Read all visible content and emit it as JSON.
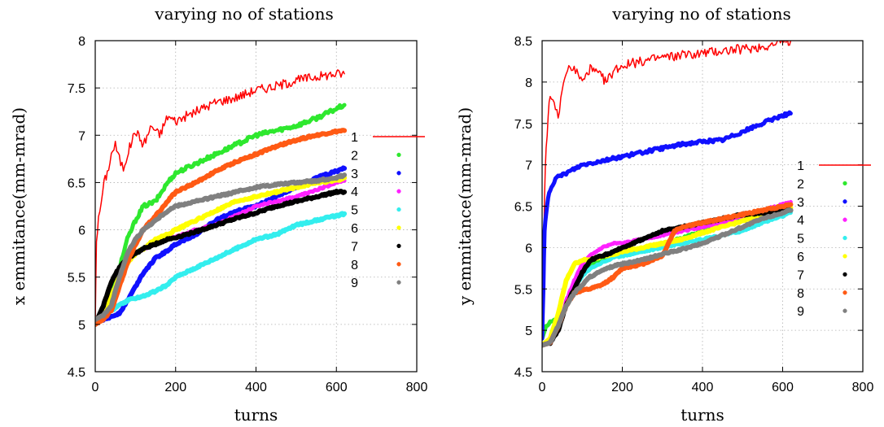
{
  "chart_data": [
    {
      "type": "line",
      "title": "varying no of stations",
      "xlabel": "turns",
      "ylabel": "x emmitance(mm-mrad)",
      "xlim": [
        0,
        800
      ],
      "ylim": [
        4.5,
        8
      ],
      "xticks": [
        0,
        200,
        400,
        600,
        800
      ],
      "yticks": [
        4.5,
        5,
        5.5,
        6,
        6.5,
        7,
        7.5,
        8
      ],
      "grid": true,
      "legend_position": "right-outside",
      "series": [
        {
          "name": "1",
          "color": "#ff0000",
          "width": 1.5,
          "jitter": 0.05,
          "x": [
            0,
            3,
            8,
            15,
            22,
            30,
            40,
            50,
            60,
            70,
            80,
            100,
            120,
            140,
            160,
            180,
            200,
            250,
            300,
            350,
            400,
            450,
            500,
            550,
            600,
            620
          ],
          "y": [
            5.0,
            5.9,
            6.1,
            6.3,
            6.5,
            6.6,
            6.8,
            6.9,
            6.75,
            6.65,
            6.8,
            7.05,
            6.9,
            7.1,
            7.0,
            7.2,
            7.15,
            7.25,
            7.35,
            7.4,
            7.48,
            7.52,
            7.58,
            7.62,
            7.65,
            7.65
          ]
        },
        {
          "name": "2",
          "color": "#2ee82e",
          "width": 5,
          "jitter": 0.02,
          "x": [
            0,
            20,
            40,
            60,
            80,
            100,
            120,
            150,
            180,
            200,
            250,
            300,
            350,
            400,
            450,
            500,
            550,
            600,
            620
          ],
          "y": [
            5.0,
            5.1,
            5.3,
            5.6,
            5.9,
            6.1,
            6.25,
            6.3,
            6.5,
            6.6,
            6.7,
            6.8,
            6.9,
            7.0,
            7.05,
            7.1,
            7.18,
            7.28,
            7.32
          ]
        },
        {
          "name": "3",
          "color": "#1010ff",
          "width": 6,
          "jitter": 0.01,
          "x": [
            0,
            20,
            40,
            60,
            80,
            100,
            120,
            150,
            180,
            200,
            250,
            300,
            350,
            400,
            450,
            500,
            550,
            600,
            620
          ],
          "y": [
            5.05,
            5.05,
            5.08,
            5.12,
            5.25,
            5.4,
            5.55,
            5.7,
            5.78,
            5.85,
            5.95,
            6.1,
            6.2,
            6.25,
            6.35,
            6.45,
            6.55,
            6.62,
            6.65
          ]
        },
        {
          "name": "4",
          "color": "#ff20ff",
          "width": 5,
          "jitter": 0.01,
          "x": [
            0,
            20,
            40,
            60,
            80,
            100,
            120,
            150,
            180,
            200,
            250,
            300,
            350,
            400,
            450,
            500,
            550,
            600,
            620
          ],
          "y": [
            5.05,
            5.1,
            5.25,
            5.5,
            5.65,
            5.75,
            5.8,
            5.85,
            5.9,
            5.92,
            6.0,
            6.05,
            6.15,
            6.25,
            6.3,
            6.35,
            6.42,
            6.5,
            6.52
          ]
        },
        {
          "name": "5",
          "color": "#33eeee",
          "width": 6,
          "jitter": 0.01,
          "x": [
            0,
            20,
            40,
            60,
            80,
            100,
            120,
            150,
            180,
            200,
            250,
            300,
            350,
            400,
            450,
            500,
            550,
            600,
            620
          ],
          "y": [
            5.05,
            5.1,
            5.15,
            5.2,
            5.25,
            5.28,
            5.3,
            5.35,
            5.42,
            5.5,
            5.6,
            5.7,
            5.8,
            5.9,
            5.95,
            6.05,
            6.1,
            6.15,
            6.17
          ]
        },
        {
          "name": "6",
          "color": "#ffff00",
          "width": 6,
          "jitter": 0.01,
          "x": [
            0,
            20,
            40,
            60,
            80,
            100,
            120,
            150,
            180,
            200,
            250,
            300,
            350,
            400,
            450,
            500,
            550,
            600,
            620
          ],
          "y": [
            5.05,
            5.1,
            5.3,
            5.5,
            5.65,
            5.75,
            5.8,
            5.9,
            5.95,
            6.0,
            6.1,
            6.2,
            6.3,
            6.35,
            6.4,
            6.45,
            6.5,
            6.52,
            6.55
          ]
        },
        {
          "name": "7",
          "color": "#000000",
          "width": 6,
          "jitter": 0.01,
          "x": [
            0,
            20,
            40,
            60,
            80,
            100,
            120,
            150,
            180,
            200,
            250,
            300,
            350,
            400,
            450,
            500,
            550,
            600,
            620
          ],
          "y": [
            5.0,
            5.2,
            5.45,
            5.6,
            5.7,
            5.75,
            5.8,
            5.85,
            5.9,
            5.92,
            5.98,
            6.05,
            6.12,
            6.18,
            6.25,
            6.3,
            6.35,
            6.4,
            6.4
          ]
        },
        {
          "name": "8",
          "color": "#ff5a14",
          "width": 6,
          "jitter": 0.01,
          "x": [
            0,
            20,
            40,
            60,
            80,
            100,
            120,
            150,
            180,
            200,
            250,
            300,
            350,
            400,
            450,
            500,
            550,
            600,
            620
          ],
          "y": [
            5.0,
            5.05,
            5.15,
            5.4,
            5.65,
            5.85,
            6.0,
            6.15,
            6.3,
            6.4,
            6.5,
            6.62,
            6.72,
            6.8,
            6.88,
            6.95,
            7.0,
            7.04,
            7.05
          ]
        },
        {
          "name": "9",
          "color": "#808080",
          "width": 6,
          "jitter": 0.01,
          "x": [
            0,
            20,
            40,
            60,
            80,
            100,
            120,
            150,
            180,
            200,
            250,
            300,
            350,
            400,
            450,
            500,
            550,
            600,
            620
          ],
          "y": [
            5.05,
            5.1,
            5.2,
            5.5,
            5.75,
            5.9,
            6.0,
            6.1,
            6.2,
            6.25,
            6.3,
            6.35,
            6.4,
            6.45,
            6.48,
            6.5,
            6.52,
            6.55,
            6.58
          ]
        }
      ]
    },
    {
      "type": "line",
      "title": "varying no of stations",
      "xlabel": "turns",
      "ylabel": "y emmitance(mm-mrad)",
      "xlim": [
        0,
        800
      ],
      "ylim": [
        4.5,
        8.5
      ],
      "xticks": [
        0,
        200,
        400,
        600,
        800
      ],
      "yticks": [
        4.5,
        5,
        5.5,
        6,
        6.5,
        7,
        7.5,
        8,
        8.5
      ],
      "grid": true,
      "legend_position": "right",
      "series": [
        {
          "name": "1",
          "color": "#ff0000",
          "width": 1.5,
          "jitter": 0.06,
          "x": [
            0,
            3,
            6,
            10,
            15,
            20,
            30,
            40,
            50,
            60,
            70,
            80,
            90,
            100,
            120,
            140,
            160,
            180,
            200,
            250,
            300,
            350,
            400,
            450,
            500,
            550,
            600,
            620
          ],
          "y": [
            4.9,
            5.8,
            6.6,
            7.2,
            7.6,
            7.8,
            7.7,
            7.6,
            7.85,
            8.1,
            8.2,
            8.15,
            8.1,
            8.0,
            8.15,
            8.1,
            8.0,
            8.15,
            8.2,
            8.25,
            8.3,
            8.32,
            8.35,
            8.38,
            8.4,
            8.43,
            8.48,
            8.5
          ]
        },
        {
          "name": "2",
          "color": "#2ee82e",
          "width": 5,
          "jitter": 0.01,
          "x": [
            0,
            10,
            20,
            30,
            40,
            60,
            80,
            100,
            120,
            150,
            180,
            200,
            250,
            300,
            350,
            400,
            450,
            500,
            550,
            600,
            620
          ],
          "y": [
            4.9,
            5.05,
            5.1,
            5.12,
            5.1,
            5.3,
            5.5,
            5.7,
            5.8,
            5.85,
            5.9,
            5.92,
            5.98,
            6.05,
            6.12,
            6.2,
            6.28,
            6.35,
            6.42,
            6.5,
            6.52
          ]
        },
        {
          "name": "3",
          "color": "#1010ff",
          "width": 5,
          "jitter": 0.02,
          "x": [
            0,
            3,
            6,
            10,
            15,
            20,
            30,
            40,
            60,
            80,
            100,
            150,
            200,
            250,
            300,
            350,
            400,
            450,
            500,
            550,
            600,
            620
          ],
          "y": [
            4.9,
            5.5,
            6.2,
            6.4,
            6.6,
            6.7,
            6.8,
            6.85,
            6.9,
            6.95,
            7.0,
            7.05,
            7.1,
            7.15,
            7.2,
            7.25,
            7.28,
            7.3,
            7.4,
            7.5,
            7.6,
            7.62
          ]
        },
        {
          "name": "4",
          "color": "#ff20ff",
          "width": 5,
          "jitter": 0.01,
          "x": [
            0,
            20,
            40,
            60,
            80,
            100,
            120,
            150,
            180,
            200,
            250,
            300,
            350,
            400,
            450,
            500,
            550,
            600,
            620
          ],
          "y": [
            4.82,
            4.85,
            5.0,
            5.35,
            5.6,
            5.8,
            5.9,
            6.0,
            6.05,
            6.05,
            6.1,
            6.15,
            6.2,
            6.25,
            6.3,
            6.38,
            6.45,
            6.52,
            6.55
          ]
        },
        {
          "name": "5",
          "color": "#33eeee",
          "width": 5,
          "jitter": 0.01,
          "x": [
            0,
            20,
            40,
            60,
            80,
            100,
            120,
            150,
            180,
            200,
            250,
            300,
            350,
            400,
            450,
            500,
            550,
            600,
            620
          ],
          "y": [
            4.82,
            4.85,
            5.0,
            5.3,
            5.5,
            5.65,
            5.75,
            5.82,
            5.88,
            5.9,
            5.95,
            6.0,
            6.05,
            6.1,
            6.15,
            6.2,
            6.3,
            6.38,
            6.42
          ]
        },
        {
          "name": "6",
          "color": "#ffff00",
          "width": 6,
          "jitter": 0.01,
          "x": [
            0,
            20,
            40,
            60,
            80,
            100,
            120,
            150,
            180,
            200,
            250,
            300,
            350,
            400,
            450,
            500,
            550,
            600,
            620
          ],
          "y": [
            4.82,
            4.9,
            5.2,
            5.6,
            5.8,
            5.85,
            5.85,
            5.9,
            5.92,
            5.95,
            6.0,
            6.05,
            6.1,
            6.18,
            6.25,
            6.32,
            6.4,
            6.45,
            6.48
          ]
        },
        {
          "name": "7",
          "color": "#000000",
          "width": 6,
          "jitter": 0.01,
          "x": [
            0,
            20,
            40,
            60,
            80,
            100,
            120,
            150,
            180,
            200,
            250,
            300,
            350,
            400,
            450,
            500,
            550,
            600,
            620
          ],
          "y": [
            4.82,
            4.85,
            5.0,
            5.3,
            5.5,
            5.7,
            5.85,
            5.9,
            5.95,
            6.0,
            6.1,
            6.2,
            6.25,
            6.3,
            6.35,
            6.4,
            6.42,
            6.45,
            6.45
          ]
        },
        {
          "name": "8",
          "color": "#ff5a14",
          "width": 6,
          "jitter": 0.01,
          "x": [
            0,
            20,
            40,
            60,
            80,
            100,
            120,
            150,
            180,
            200,
            250,
            300,
            330,
            350,
            400,
            450,
            500,
            550,
            600,
            620
          ],
          "y": [
            4.82,
            4.85,
            5.05,
            5.3,
            5.45,
            5.48,
            5.5,
            5.55,
            5.65,
            5.75,
            5.8,
            5.9,
            6.2,
            6.25,
            6.3,
            6.35,
            6.4,
            6.45,
            6.5,
            6.52
          ]
        },
        {
          "name": "9",
          "color": "#808080",
          "width": 6,
          "jitter": 0.01,
          "x": [
            0,
            20,
            40,
            60,
            80,
            100,
            120,
            150,
            180,
            200,
            250,
            300,
            350,
            400,
            450,
            500,
            550,
            600,
            620
          ],
          "y": [
            4.82,
            4.85,
            5.05,
            5.3,
            5.45,
            5.55,
            5.65,
            5.72,
            5.78,
            5.8,
            5.85,
            5.92,
            5.98,
            6.05,
            6.15,
            6.25,
            6.35,
            6.42,
            6.45
          ]
        }
      ]
    }
  ]
}
